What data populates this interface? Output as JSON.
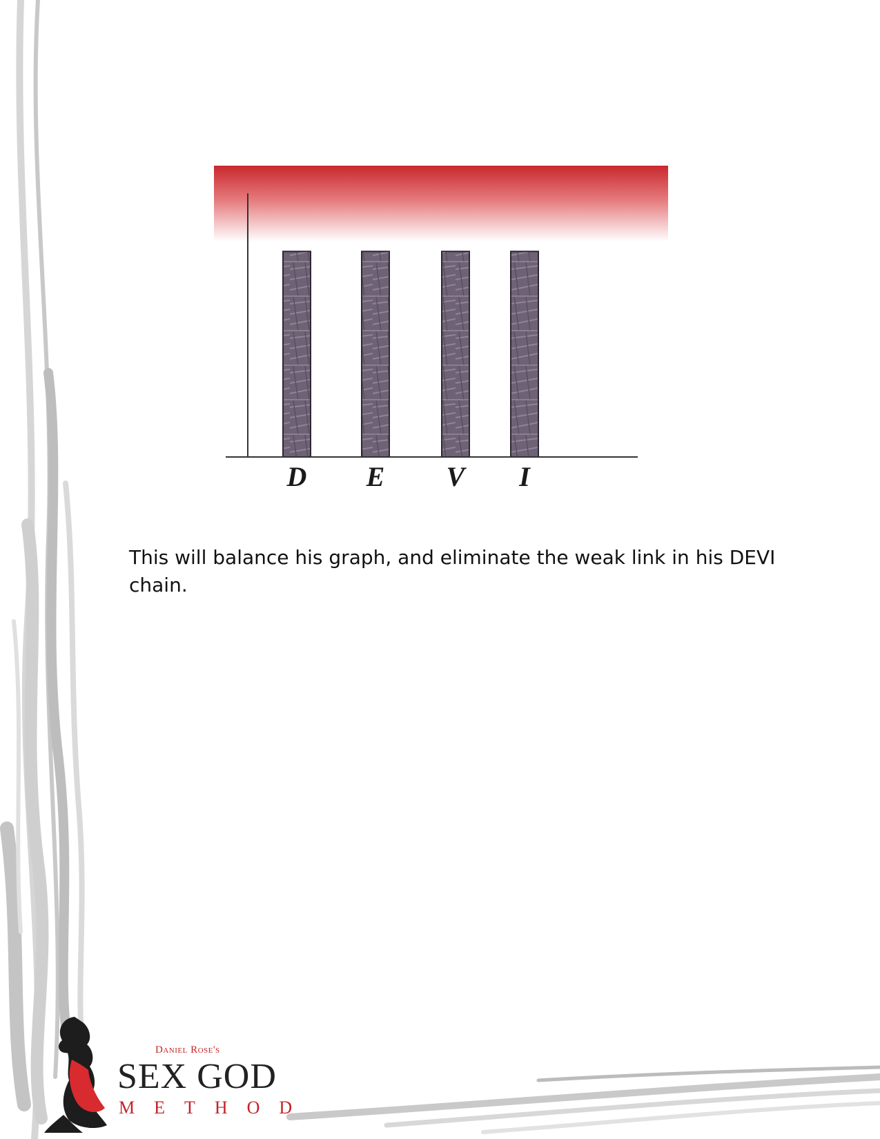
{
  "chart_data": {
    "type": "bar",
    "categories": [
      "D",
      "E",
      "V",
      "I"
    ],
    "values": [
      10,
      10,
      10,
      10
    ],
    "ylim": [
      0,
      13.5
    ],
    "title": "",
    "xlabel": "",
    "ylabel": "",
    "grid": false,
    "colors": {
      "bar": "#6e6275",
      "bar_edge": "#2f2733",
      "band_top": "#c9282d",
      "axis": "#333333"
    }
  },
  "body": {
    "text": "This will balance his graph, and eliminate the weak link in his DEVI chain."
  },
  "logo": {
    "small": "Daniel Rose's",
    "main": "SEX GOD",
    "sub": "METHOD"
  }
}
